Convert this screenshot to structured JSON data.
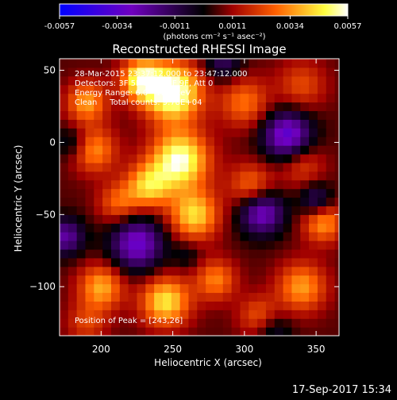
{
  "chart_data": {
    "type": "heatmap",
    "title": "Reconstructed RHESSI Image",
    "xlabel": "Heliocentric X (arcsec)",
    "ylabel": "Heliocentric Y (arcsec)",
    "xlim": [
      171,
      366
    ],
    "ylim": [
      -134,
      58
    ],
    "x_ticks": [
      200,
      250,
      300,
      350
    ],
    "y_ticks": [
      50,
      0,
      -50,
      -100
    ],
    "colorbar": {
      "ticks": [
        "-0.0057",
        "-0.0034",
        "-0.0011",
        "0.0011",
        "0.0034",
        "0.0057"
      ],
      "range": [
        -0.0057,
        0.0057
      ],
      "unit_label": "(photons cm⁻² s⁻¹ asec⁻²)",
      "colors": [
        "#0000ff",
        "#7000c0",
        "#000000",
        "#a00000",
        "#ff6000",
        "#ffff40",
        "#ffffff"
      ]
    },
    "annotations": [
      "28-Mar-2015 23:37:12.000 to 23:47:12.000",
      "Detectors: 3F 5F 6F 7F 8F 9F, Att 0",
      "Energy Range: 6.0 - 12.0 keV",
      "Clean     Total counts: 9.78E+04"
    ],
    "peak_label": "Position of Peak = [243,26]",
    "timestamp": "17-Sep-2017 15:34",
    "blobs": [
      {
        "x": 250,
        "y": 35,
        "v": 0.0055,
        "s": 14
      },
      {
        "x": 228,
        "y": 44,
        "v": 0.0042,
        "s": 10
      },
      {
        "x": 190,
        "y": 28,
        "v": 0.003,
        "s": 10
      },
      {
        "x": 300,
        "y": 28,
        "v": 0.0024,
        "s": 12
      },
      {
        "x": 340,
        "y": 40,
        "v": 0.0018,
        "s": 12
      },
      {
        "x": 195,
        "y": -5,
        "v": 0.0028,
        "s": 11
      },
      {
        "x": 255,
        "y": -12,
        "v": 0.005,
        "s": 14
      },
      {
        "x": 233,
        "y": -30,
        "v": 0.0035,
        "s": 11
      },
      {
        "x": 212,
        "y": -42,
        "v": 0.0022,
        "s": 10
      },
      {
        "x": 265,
        "y": -50,
        "v": 0.0038,
        "s": 12
      },
      {
        "x": 305,
        "y": -30,
        "v": 0.0025,
        "s": 11
      },
      {
        "x": 340,
        "y": -15,
        "v": 0.0018,
        "s": 11
      },
      {
        "x": 355,
        "y": -55,
        "v": 0.003,
        "s": 10
      },
      {
        "x": 200,
        "y": -100,
        "v": 0.0032,
        "s": 11
      },
      {
        "x": 245,
        "y": -110,
        "v": 0.004,
        "s": 12
      },
      {
        "x": 280,
        "y": -95,
        "v": 0.0026,
        "s": 10
      },
      {
        "x": 340,
        "y": -100,
        "v": 0.003,
        "s": 12
      },
      {
        "x": 310,
        "y": -120,
        "v": 0.002,
        "s": 10
      },
      {
        "x": 190,
        "y": -125,
        "v": 0.0016,
        "s": 10
      },
      {
        "x": 225,
        "y": -70,
        "v": -0.0038,
        "s": 13
      },
      {
        "x": 260,
        "y": -78,
        "v": -0.001,
        "s": 7
      },
      {
        "x": 175,
        "y": -65,
        "v": -0.003,
        "s": 9
      },
      {
        "x": 330,
        "y": 5,
        "v": -0.0042,
        "s": 12
      },
      {
        "x": 312,
        "y": -48,
        "v": -0.0038,
        "s": 11
      },
      {
        "x": 350,
        "y": -40,
        "v": -0.0025,
        "s": 8
      },
      {
        "x": 285,
        "y": 55,
        "v": -0.002,
        "s": 9
      },
      {
        "x": 180,
        "y": 0,
        "v": -0.0015,
        "s": 8
      },
      {
        "x": 320,
        "y": -130,
        "v": -0.0015,
        "s": 9
      }
    ]
  }
}
